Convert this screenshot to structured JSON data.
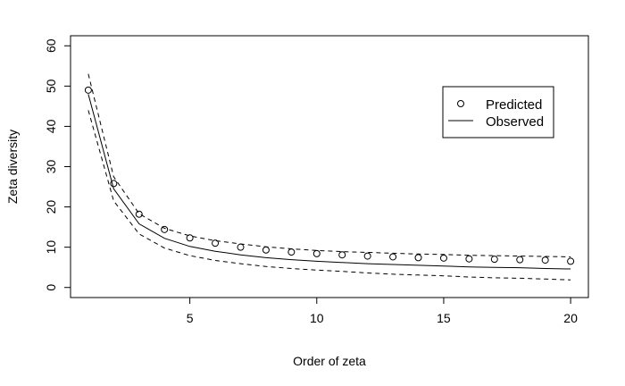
{
  "chart_data": {
    "type": "line",
    "xlabel": "Order of zeta",
    "ylabel": "Zeta diversity",
    "xlim": [
      0.3,
      20.7
    ],
    "ylim": [
      -2.5,
      62.5
    ],
    "x_ticks": [
      5,
      10,
      15,
      20
    ],
    "y_ticks": [
      0,
      10,
      20,
      30,
      40,
      50,
      60
    ],
    "grid": false,
    "legend": {
      "position": "top-right",
      "entries": [
        {
          "label": "Predicted",
          "symbol": "open-circle"
        },
        {
          "label": "Observed",
          "symbol": "solid-line"
        }
      ]
    },
    "x": [
      1,
      2,
      3,
      4,
      5,
      6,
      7,
      8,
      9,
      10,
      11,
      12,
      13,
      14,
      15,
      16,
      17,
      18,
      19,
      20
    ],
    "series": [
      {
        "name": "Predicted",
        "style": "points",
        "values": [
          49.0,
          25.8,
          18.2,
          14.4,
          12.3,
          11.0,
          10.0,
          9.3,
          8.8,
          8.4,
          8.1,
          7.8,
          7.6,
          7.4,
          7.3,
          7.1,
          7.0,
          6.9,
          6.8,
          6.5
        ]
      },
      {
        "name": "Observed",
        "style": "solid",
        "values": [
          48.0,
          24.5,
          15.8,
          12.2,
          10.2,
          9.0,
          8.1,
          7.4,
          6.9,
          6.5,
          6.2,
          5.9,
          5.7,
          5.5,
          5.3,
          5.1,
          5.0,
          4.9,
          4.7,
          4.6
        ]
      },
      {
        "style": "dashed",
        "values": [
          53.0,
          27.5,
          18.3,
          14.7,
          12.8,
          11.6,
          10.8,
          10.1,
          9.6,
          9.2,
          8.9,
          8.7,
          8.5,
          8.3,
          8.2,
          8.0,
          7.9,
          7.8,
          7.7,
          7.6
        ]
      },
      {
        "style": "dashed",
        "values": [
          44.0,
          21.5,
          13.3,
          9.8,
          7.9,
          6.7,
          5.9,
          5.2,
          4.7,
          4.3,
          4.0,
          3.6,
          3.3,
          3.1,
          2.9,
          2.6,
          2.4,
          2.3,
          2.1,
          1.9
        ]
      }
    ]
  }
}
